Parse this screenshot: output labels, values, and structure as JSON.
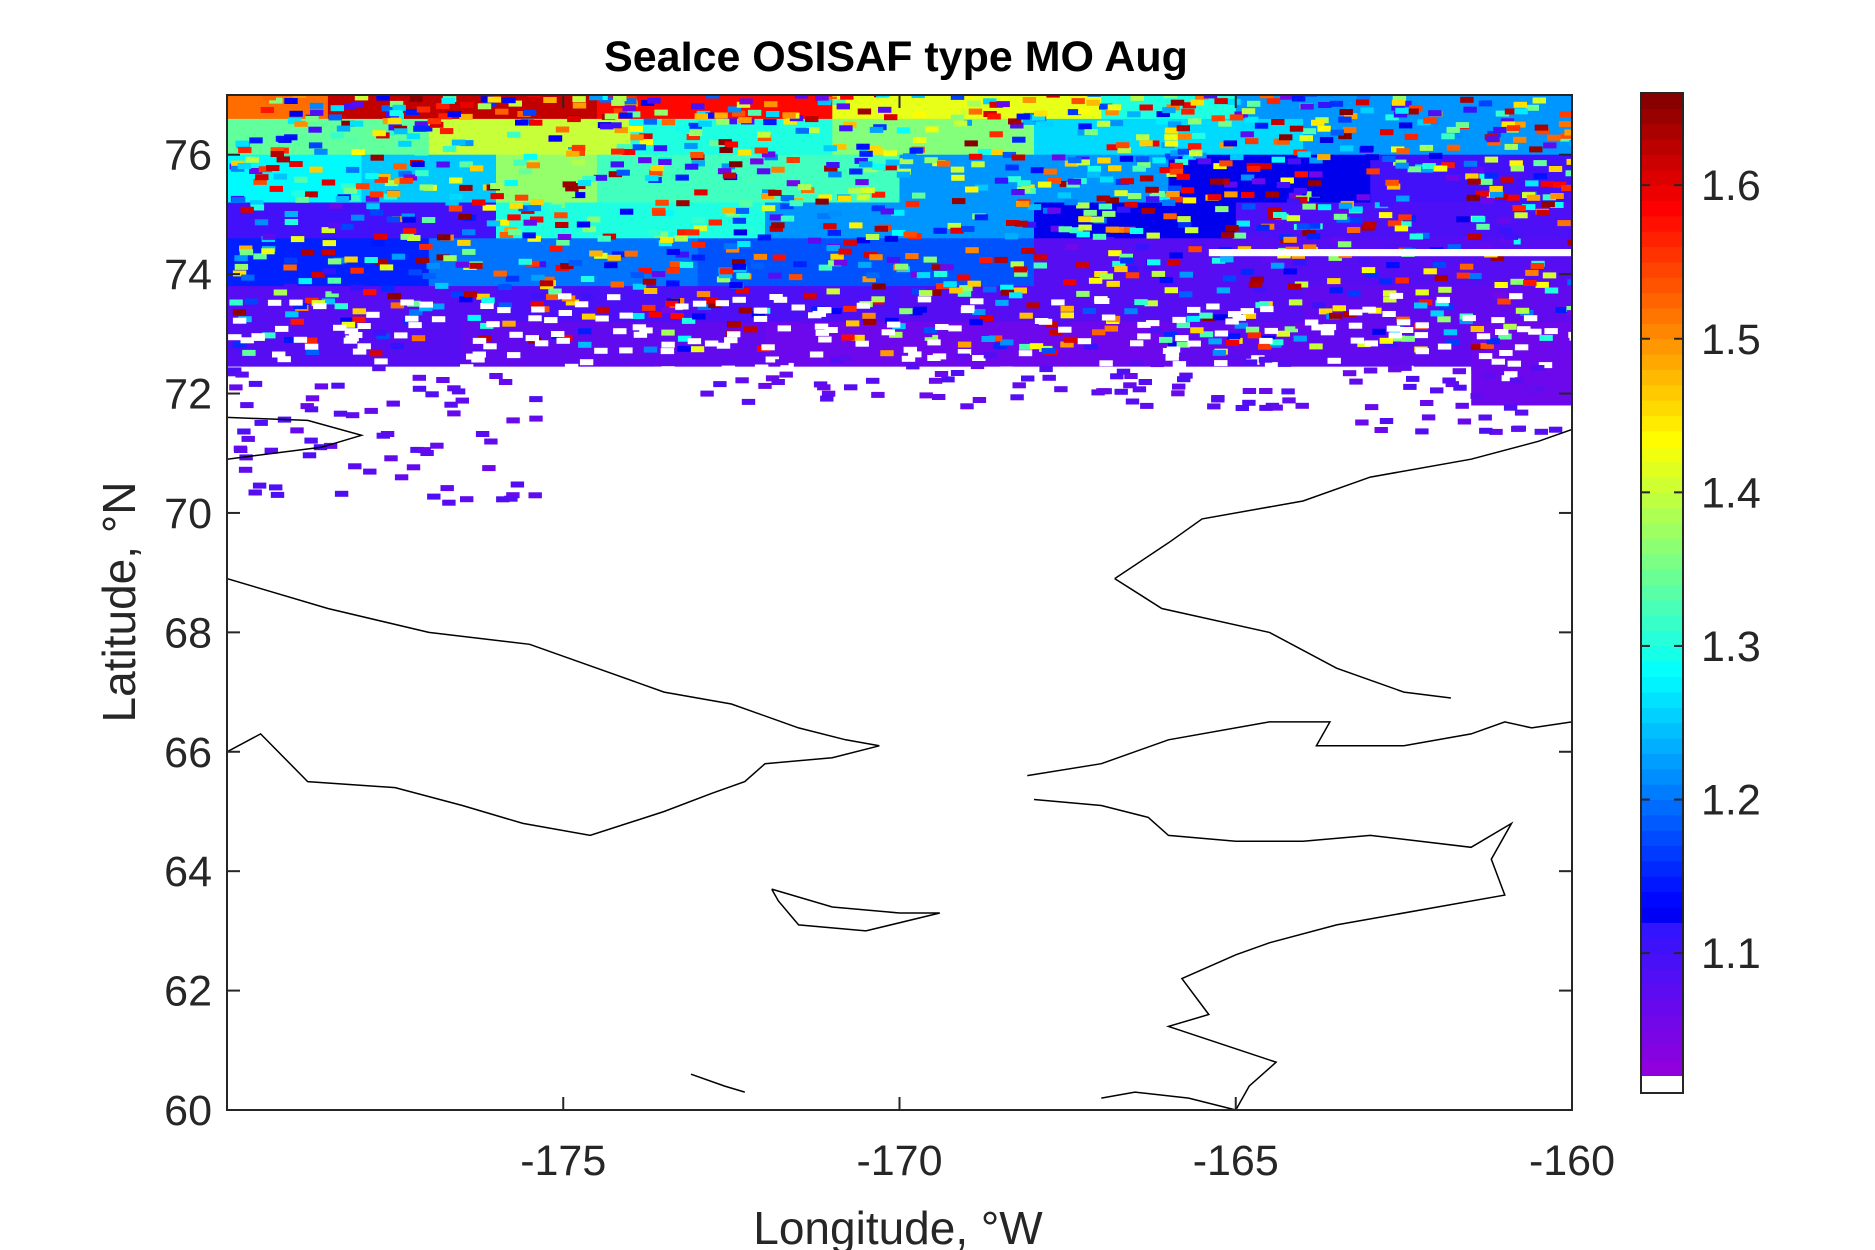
{
  "chart_data": {
    "type": "heatmap",
    "title": "SeaIce OSISAF type MO Aug",
    "xlabel": "Longitude, °W",
    "ylabel": "Latitude, °N",
    "xlim": [
      -180,
      -160
    ],
    "ylim": [
      60,
      77
    ],
    "x_ticks": [
      -175,
      -170,
      -165,
      -160
    ],
    "x_tick_labels": [
      "-175",
      "-170",
      "-165",
      "-160"
    ],
    "y_ticks": [
      60,
      62,
      64,
      66,
      68,
      70,
      72,
      74,
      76
    ],
    "y_tick_labels": [
      "60",
      "62",
      "64",
      "66",
      "68",
      "70",
      "72",
      "74",
      "76"
    ],
    "colorbar": {
      "colormap": "jet",
      "clim": [
        1.02,
        1.66
      ],
      "ticks": [
        1.1,
        1.2,
        1.3,
        1.4,
        1.5,
        1.6
      ],
      "tick_labels": [
        "1.1",
        "1.2",
        "1.3",
        "1.4",
        "1.5",
        "1.6"
      ],
      "levels": 64,
      "bottom_color_below_range": "#ffffff"
    },
    "grid": false,
    "field_rows": [
      {
        "lat_from": 76.6,
        "lat_to": 77.0,
        "segments": [
          [
            -180,
            -178.5,
            1.52
          ],
          [
            -178.5,
            -174.5,
            1.62
          ],
          [
            -174.5,
            -171,
            1.58
          ],
          [
            -171,
            -167,
            1.42
          ],
          [
            -167,
            -165,
            1.3
          ],
          [
            -165,
            -160,
            1.22
          ]
        ]
      },
      {
        "lat_from": 76.0,
        "lat_to": 76.6,
        "segments": [
          [
            -180,
            -177,
            1.34
          ],
          [
            -177,
            -174,
            1.4
          ],
          [
            -174,
            -171,
            1.3
          ],
          [
            -171,
            -168,
            1.36
          ],
          [
            -168,
            -164,
            1.26
          ],
          [
            -164,
            -160,
            1.22
          ]
        ]
      },
      {
        "lat_from": 75.2,
        "lat_to": 76.0,
        "segments": [
          [
            -180,
            -178,
            1.28
          ],
          [
            -178,
            -176,
            1.25
          ],
          [
            -176,
            -174.5,
            1.37
          ],
          [
            -174.5,
            -170,
            1.32
          ],
          [
            -170,
            -166,
            1.22
          ],
          [
            -166,
            -163,
            1.12
          ],
          [
            -163,
            -160,
            1.1
          ]
        ]
      },
      {
        "lat_from": 74.6,
        "lat_to": 75.2,
        "segments": [
          [
            -180,
            -176,
            1.1
          ],
          [
            -176,
            -172,
            1.3
          ],
          [
            -172,
            -168,
            1.22
          ],
          [
            -168,
            -165,
            1.12
          ],
          [
            -165,
            -160,
            1.09
          ]
        ]
      },
      {
        "lat_from": 73.8,
        "lat_to": 74.6,
        "segments": [
          [
            -180,
            -177,
            1.15
          ],
          [
            -177,
            -173,
            1.2
          ],
          [
            -173,
            -168,
            1.18
          ],
          [
            -168,
            -160,
            1.08
          ]
        ]
      },
      {
        "lat_from": 73.2,
        "lat_to": 73.8,
        "segments": [
          [
            -180,
            -176,
            1.08
          ],
          [
            -176,
            -170,
            1.09
          ],
          [
            -170,
            -164,
            1.08
          ],
          [
            -164,
            -160,
            1.07
          ]
        ]
      },
      {
        "lat_from": 72.4,
        "lat_to": 73.2,
        "segments": [
          [
            -180,
            -176.5,
            1.08
          ],
          [
            -176.5,
            -172,
            1.07
          ],
          [
            -172,
            -166,
            1.06
          ],
          [
            -166,
            -161.5,
            1.07
          ],
          [
            -161.5,
            -160,
            1.06
          ]
        ]
      },
      {
        "lat_from": 71.8,
        "lat_to": 72.4,
        "segments": [
          [
            -161.5,
            -160,
            1.06
          ]
        ]
      }
    ],
    "speckle": {
      "value_range": [
        1.05,
        1.66
      ],
      "lat_range": [
        72.6,
        77.0
      ]
    },
    "edge_fragments_lat_range": [
      70.1,
      73.3
    ],
    "coastlines": true
  }
}
